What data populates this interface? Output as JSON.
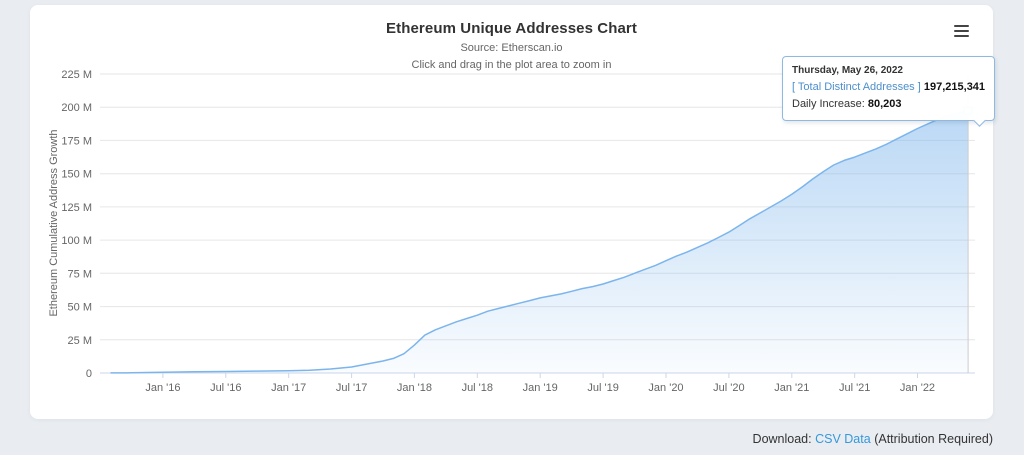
{
  "chart_data": {
    "type": "area",
    "title": "Ethereum Unique Addresses Chart",
    "subtitle_source": "Source: Etherscan.io",
    "subtitle_hint": "Click and drag in the plot area to zoom in",
    "ylabel": "Ethereum Cumulative Address Growth",
    "value_unit": "millions of addresses",
    "ylim": [
      0,
      225
    ],
    "grid": "horizontal",
    "legend_position": "none",
    "y_ticks": [
      {
        "v": 0,
        "label": "0"
      },
      {
        "v": 25,
        "label": "25 M"
      },
      {
        "v": 50,
        "label": "50 M"
      },
      {
        "v": 75,
        "label": "75 M"
      },
      {
        "v": 100,
        "label": "100 M"
      },
      {
        "v": 125,
        "label": "125 M"
      },
      {
        "v": 150,
        "label": "150 M"
      },
      {
        "v": 175,
        "label": "175 M"
      },
      {
        "v": 200,
        "label": "200 M"
      },
      {
        "v": 225,
        "label": "225 M"
      }
    ],
    "x_ticks": [
      {
        "t": "2016-01",
        "label": "Jan '16"
      },
      {
        "t": "2016-07",
        "label": "Jul '16"
      },
      {
        "t": "2017-01",
        "label": "Jan '17"
      },
      {
        "t": "2017-07",
        "label": "Jul '17"
      },
      {
        "t": "2018-01",
        "label": "Jan '18"
      },
      {
        "t": "2018-07",
        "label": "Jul '18"
      },
      {
        "t": "2019-01",
        "label": "Jan '19"
      },
      {
        "t": "2019-07",
        "label": "Jul '19"
      },
      {
        "t": "2020-01",
        "label": "Jan '20"
      },
      {
        "t": "2020-07",
        "label": "Jul '20"
      },
      {
        "t": "2021-01",
        "label": "Jan '21"
      },
      {
        "t": "2021-07",
        "label": "Jul '21"
      },
      {
        "t": "2022-01",
        "label": "Jan '22"
      }
    ],
    "series": [
      {
        "name": "Total Distinct Addresses",
        "color": "#7cb5ec",
        "points": [
          [
            "2015-08",
            0.05
          ],
          [
            "2015-10",
            0.15
          ],
          [
            "2016-01",
            0.6
          ],
          [
            "2016-04",
            0.9
          ],
          [
            "2016-07",
            1.1
          ],
          [
            "2016-10",
            1.4
          ],
          [
            "2017-01",
            1.7
          ],
          [
            "2017-03",
            2.1
          ],
          [
            "2017-05",
            3.0
          ],
          [
            "2017-07",
            4.5
          ],
          [
            "2017-08",
            6.0
          ],
          [
            "2017-09",
            7.5
          ],
          [
            "2017-10",
            9.0
          ],
          [
            "2017-11",
            11.0
          ],
          [
            "2017-12",
            14.5
          ],
          [
            "2018-01",
            21.0
          ],
          [
            "2018-02",
            28.5
          ],
          [
            "2018-03",
            32.5
          ],
          [
            "2018-04",
            35.5
          ],
          [
            "2018-05",
            38.5
          ],
          [
            "2018-06",
            41.0
          ],
          [
            "2018-07",
            43.5
          ],
          [
            "2018-08",
            46.5
          ],
          [
            "2018-09",
            48.5
          ],
          [
            "2018-10",
            50.5
          ],
          [
            "2018-11",
            52.5
          ],
          [
            "2018-12",
            54.5
          ],
          [
            "2019-01",
            56.5
          ],
          [
            "2019-02",
            58.0
          ],
          [
            "2019-03",
            59.5
          ],
          [
            "2019-04",
            61.5
          ],
          [
            "2019-05",
            63.5
          ],
          [
            "2019-06",
            65.0
          ],
          [
            "2019-07",
            67.0
          ],
          [
            "2019-08",
            69.5
          ],
          [
            "2019-09",
            72.0
          ],
          [
            "2019-10",
            75.0
          ],
          [
            "2019-11",
            78.0
          ],
          [
            "2019-12",
            81.0
          ],
          [
            "2020-01",
            84.5
          ],
          [
            "2020-02",
            88.0
          ],
          [
            "2020-03",
            91.0
          ],
          [
            "2020-04",
            94.5
          ],
          [
            "2020-05",
            98.0
          ],
          [
            "2020-06",
            102.0
          ],
          [
            "2020-07",
            106.0
          ],
          [
            "2020-08",
            111.0
          ],
          [
            "2020-09",
            116.0
          ],
          [
            "2020-10",
            120.5
          ],
          [
            "2020-11",
            125.0
          ],
          [
            "2020-12",
            129.5
          ],
          [
            "2021-01",
            134.5
          ],
          [
            "2021-02",
            140.0
          ],
          [
            "2021-03",
            146.0
          ],
          [
            "2021-04",
            151.5
          ],
          [
            "2021-05",
            156.5
          ],
          [
            "2021-06",
            160.0
          ],
          [
            "2021-07",
            162.5
          ],
          [
            "2021-08",
            165.5
          ],
          [
            "2021-09",
            168.5
          ],
          [
            "2021-10",
            172.0
          ],
          [
            "2021-11",
            176.0
          ],
          [
            "2021-12",
            180.0
          ],
          [
            "2022-01",
            184.0
          ],
          [
            "2022-02",
            187.5
          ],
          [
            "2022-03",
            191.0
          ],
          [
            "2022-04",
            194.0
          ],
          [
            "2022-05-26",
            197.215341
          ]
        ]
      }
    ]
  },
  "tooltip": {
    "date": "Thursday, May 26, 2022",
    "series_label": "[ Total Distinct Addresses ]",
    "value": "197,215,341",
    "daily_label": "Daily Increase:",
    "daily_value": "80,203"
  },
  "menu": {
    "context_button": "Chart context menu"
  },
  "footer": {
    "download_label": "Download:",
    "csv_link": "CSV Data",
    "attribution": "(Attribution Required)"
  },
  "colors": {
    "line": "#7cb5ec",
    "grid": "#e6e6e6",
    "axis": "#ccd6eb",
    "crosshair": "#cccccc",
    "link": "#3498db"
  }
}
